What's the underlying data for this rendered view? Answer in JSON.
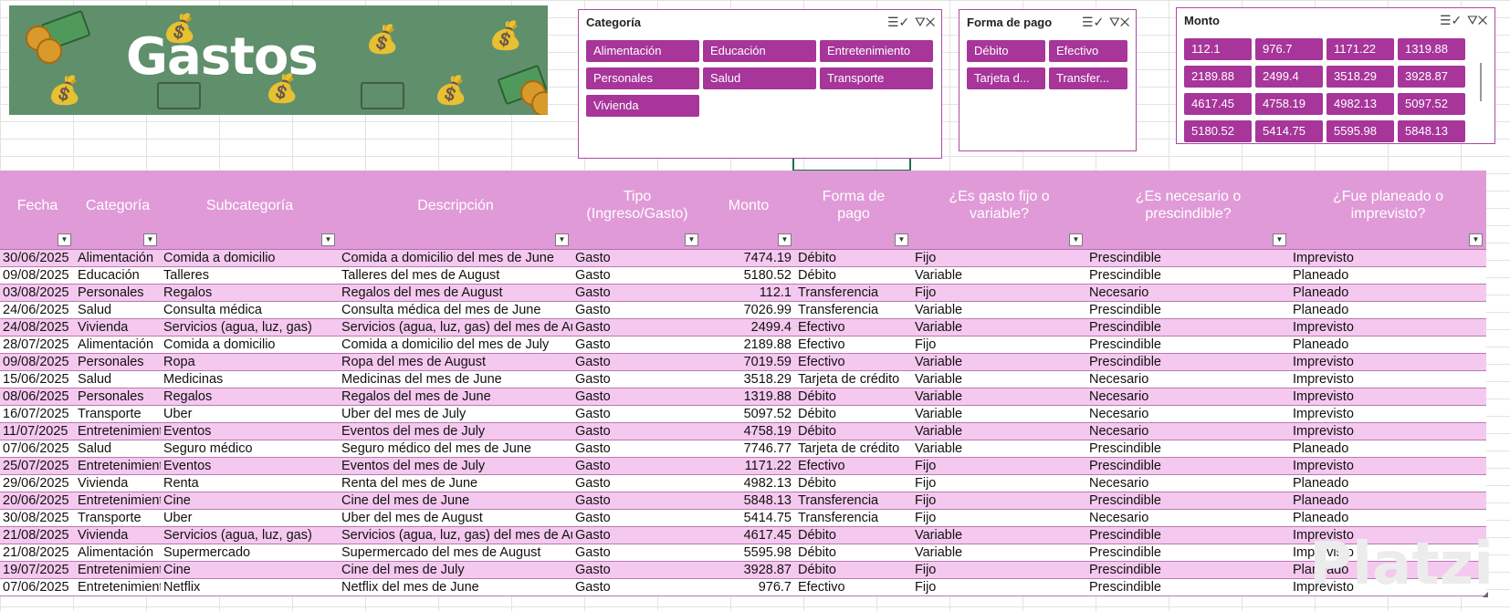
{
  "banner": {
    "title": "Gastos"
  },
  "slicers": {
    "categoria": {
      "title": "Categoría",
      "items": [
        "Alimentación",
        "Educación",
        "Entretenimiento",
        "Personales",
        "Salud",
        "Transporte",
        "Vivienda"
      ]
    },
    "forma_pago": {
      "title": "Forma de pago",
      "items": [
        "Débito",
        "Efectivo",
        "Tarjeta d...",
        "Transfer..."
      ]
    },
    "monto": {
      "title": "Monto",
      "items": [
        "112.1",
        "976.7",
        "1171.22",
        "1319.88",
        "2189.88",
        "2499.4",
        "3518.29",
        "3928.87",
        "4617.45",
        "4758.19",
        "4982.13",
        "5097.52",
        "5180.52",
        "5414.75",
        "5595.98",
        "5848.13"
      ]
    }
  },
  "table": {
    "columns": [
      {
        "l1": "Fecha",
        "l2": ""
      },
      {
        "l1": "Categoría",
        "l2": ""
      },
      {
        "l1": "Subcategoría",
        "l2": ""
      },
      {
        "l1": "Descripción",
        "l2": ""
      },
      {
        "l1": "Tipo",
        "l2": "(Ingreso/Gasto)"
      },
      {
        "l1": "Monto",
        "l2": ""
      },
      {
        "l1": "Forma de",
        "l2": "pago"
      },
      {
        "l1": "¿Es gasto fijo o",
        "l2": "variable?"
      },
      {
        "l1": "¿Es necesario o",
        "l2": "prescindible?"
      },
      {
        "l1": "¿Fue planeado o",
        "l2": "imprevisto?"
      }
    ],
    "rows": [
      [
        "30/06/2025",
        "Alimentación",
        "Comida a domicilio",
        "Comida a domicilio del mes de June",
        "Gasto",
        "7474.19",
        "Débito",
        "Fijo",
        "Prescindible",
        "Imprevisto"
      ],
      [
        "09/08/2025",
        "Educación",
        "Talleres",
        "Talleres del mes de August",
        "Gasto",
        "5180.52",
        "Débito",
        "Variable",
        "Prescindible",
        "Planeado"
      ],
      [
        "03/08/2025",
        "Personales",
        "Regalos",
        "Regalos del mes de August",
        "Gasto",
        "112.1",
        "Transferencia",
        "Fijo",
        "Necesario",
        "Planeado"
      ],
      [
        "24/06/2025",
        "Salud",
        "Consulta médica",
        "Consulta médica del mes de June",
        "Gasto",
        "7026.99",
        "Transferencia",
        "Variable",
        "Prescindible",
        "Planeado"
      ],
      [
        "24/08/2025",
        "Vivienda",
        "Servicios (agua, luz, gas)",
        "Servicios (agua, luz, gas) del mes de August",
        "Gasto",
        "2499.4",
        "Efectivo",
        "Variable",
        "Prescindible",
        "Imprevisto"
      ],
      [
        "28/07/2025",
        "Alimentación",
        "Comida a domicilio",
        "Comida a domicilio del mes de July",
        "Gasto",
        "2189.88",
        "Efectivo",
        "Fijo",
        "Prescindible",
        "Planeado"
      ],
      [
        "09/08/2025",
        "Personales",
        "Ropa",
        "Ropa del mes de August",
        "Gasto",
        "7019.59",
        "Efectivo",
        "Variable",
        "Prescindible",
        "Imprevisto"
      ],
      [
        "15/06/2025",
        "Salud",
        "Medicinas",
        "Medicinas del mes de June",
        "Gasto",
        "3518.29",
        "Tarjeta de crédito",
        "Variable",
        "Necesario",
        "Imprevisto"
      ],
      [
        "08/06/2025",
        "Personales",
        "Regalos",
        "Regalos del mes de June",
        "Gasto",
        "1319.88",
        "Débito",
        "Variable",
        "Necesario",
        "Imprevisto"
      ],
      [
        "16/07/2025",
        "Transporte",
        "Uber",
        "Uber del mes de July",
        "Gasto",
        "5097.52",
        "Débito",
        "Variable",
        "Necesario",
        "Imprevisto"
      ],
      [
        "11/07/2025",
        "Entretenimiento",
        "Eventos",
        "Eventos del mes de July",
        "Gasto",
        "4758.19",
        "Débito",
        "Variable",
        "Necesario",
        "Imprevisto"
      ],
      [
        "07/06/2025",
        "Salud",
        "Seguro médico",
        "Seguro médico del mes de June",
        "Gasto",
        "7746.77",
        "Tarjeta de crédito",
        "Variable",
        "Prescindible",
        "Planeado"
      ],
      [
        "25/07/2025",
        "Entretenimiento",
        "Eventos",
        "Eventos del mes de July",
        "Gasto",
        "1171.22",
        "Efectivo",
        "Fijo",
        "Prescindible",
        "Imprevisto"
      ],
      [
        "29/06/2025",
        "Vivienda",
        "Renta",
        "Renta del mes de June",
        "Gasto",
        "4982.13",
        "Débito",
        "Fijo",
        "Necesario",
        "Planeado"
      ],
      [
        "20/06/2025",
        "Entretenimiento",
        "Cine",
        "Cine del mes de June",
        "Gasto",
        "5848.13",
        "Transferencia",
        "Fijo",
        "Prescindible",
        "Planeado"
      ],
      [
        "30/08/2025",
        "Transporte",
        "Uber",
        "Uber del mes de August",
        "Gasto",
        "5414.75",
        "Transferencia",
        "Fijo",
        "Necesario",
        "Planeado"
      ],
      [
        "21/08/2025",
        "Vivienda",
        "Servicios (agua, luz, gas)",
        "Servicios (agua, luz, gas) del mes de August",
        "Gasto",
        "4617.45",
        "Débito",
        "Variable",
        "Prescindible",
        "Imprevisto"
      ],
      [
        "21/08/2025",
        "Alimentación",
        "Supermercado",
        "Supermercado del mes de August",
        "Gasto",
        "5595.98",
        "Débito",
        "Variable",
        "Prescindible",
        "Imprevisto"
      ],
      [
        "19/07/2025",
        "Entretenimiento",
        "Cine",
        "Cine del mes de July",
        "Gasto",
        "3928.87",
        "Débito",
        "Fijo",
        "Prescindible",
        "Planeado"
      ],
      [
        "07/06/2025",
        "Entretenimiento",
        "Netflix",
        "Netflix del mes de June",
        "Gasto",
        "976.7",
        "Efectivo",
        "Fijo",
        "Prescindible",
        "Imprevisto"
      ]
    ]
  },
  "watermark": "Platzi",
  "icons": {
    "multiselect": "multiselect-icon",
    "clear_filter": "clear-filter-icon",
    "filter_dropdown": "filter-dropdown-icon"
  },
  "colors": {
    "accent": "#a7359a",
    "header": "#e09ad7",
    "row_alt": "#f5c9ef",
    "banner": "#5f8f6b"
  }
}
